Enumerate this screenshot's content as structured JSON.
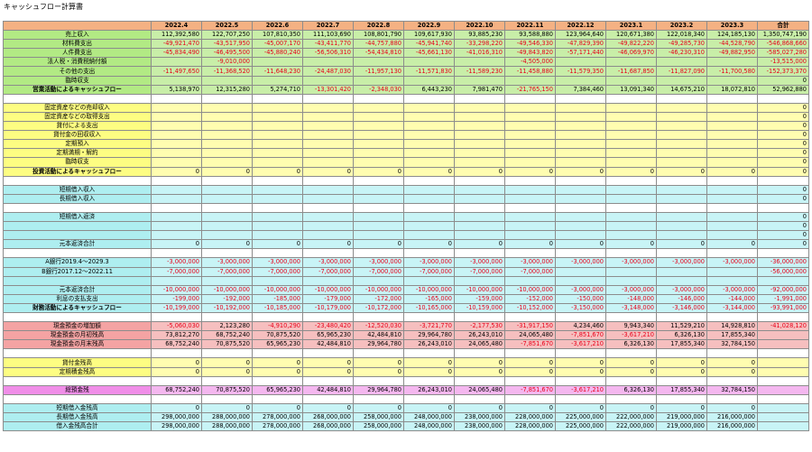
{
  "title": "キャッシュフロー計算書",
  "header": [
    "",
    "2022.4",
    "2022.5",
    "2022.6",
    "2022.7",
    "2022.8",
    "2022.9",
    "2022.10",
    "2022.11",
    "2022.12",
    "2023.1",
    "2023.2",
    "2023.3",
    "合計"
  ],
  "rows": [
    {
      "theme": "g",
      "label": "売上収入",
      "values": [
        "112,392,580",
        "122,707,250",
        "107,810,350",
        "111,103,690",
        "108,801,790",
        "109,617,930",
        "93,885,230",
        "93,588,880",
        "123,964,640",
        "120,671,380",
        "122,018,340",
        "124,185,130",
        "1,350,747,190"
      ]
    },
    {
      "theme": "g",
      "label": "材料費支出",
      "values": [
        "-49,921,470",
        "-43,517,950",
        "-45,007,170",
        "-43,411,770",
        "-44,757,880",
        "-45,941,740",
        "-33,298,220",
        "-49,546,330",
        "-47,829,390",
        "-49,822,220",
        "-49,285,730",
        "-44,528,790",
        "-546,868,660"
      ]
    },
    {
      "theme": "g",
      "label": "人件費支出",
      "values": [
        "-45,834,490",
        "-46,495,500",
        "-45,880,240",
        "-56,506,310",
        "-54,434,810",
        "-45,661,130",
        "-41,016,310",
        "-49,843,820",
        "-57,171,440",
        "-46,069,970",
        "-46,230,310",
        "-49,882,950",
        "-585,027,280"
      ]
    },
    {
      "theme": "g",
      "label": "法人税・消費税納付額",
      "values": [
        "",
        "-9,010,000",
        "",
        "",
        "",
        "",
        "",
        "-4,505,000",
        "",
        "",
        "",
        "",
        "-13,515,000"
      ]
    },
    {
      "theme": "g",
      "label": "その他の支出",
      "values": [
        "-11,497,650",
        "-11,368,520",
        "-11,648,230",
        "-24,487,030",
        "-11,957,130",
        "-11,571,830",
        "-11,589,230",
        "-11,458,880",
        "-11,579,350",
        "-11,687,850",
        "-11,827,090",
        "-11,700,580",
        "-152,373,370"
      ]
    },
    {
      "theme": "g",
      "label": "臨時収支",
      "values": [
        "",
        "",
        "",
        "",
        "",
        "",
        "",
        "",
        "",
        "",
        "",
        "",
        "0"
      ]
    },
    {
      "theme": "g",
      "label": "営業活動によるキャッシュフロー",
      "bold": true,
      "values": [
        "5,138,970",
        "12,315,280",
        "5,274,710",
        "-13,301,420",
        "-2,348,030",
        "6,443,230",
        "7,981,470",
        "-21,765,150",
        "7,384,460",
        "13,091,340",
        "14,675,210",
        "18,072,810",
        "52,962,880"
      ]
    },
    {
      "spacer": true,
      "theme": "y"
    },
    {
      "theme": "y",
      "label": "固定資産などの売却収入",
      "values": [
        "",
        "",
        "",
        "",
        "",
        "",
        "",
        "",
        "",
        "",
        "",
        "",
        "0"
      ]
    },
    {
      "theme": "y",
      "label": "固定資産などの取得支出",
      "values": [
        "",
        "",
        "",
        "",
        "",
        "",
        "",
        "",
        "",
        "",
        "",
        "",
        "0"
      ]
    },
    {
      "theme": "y",
      "label": "貸付による支出",
      "values": [
        "",
        "",
        "",
        "",
        "",
        "",
        "",
        "",
        "",
        "",
        "",
        "",
        "0"
      ]
    },
    {
      "theme": "y",
      "label": "貸付金の回収収入",
      "values": [
        "",
        "",
        "",
        "",
        "",
        "",
        "",
        "",
        "",
        "",
        "",
        "",
        "0"
      ]
    },
    {
      "theme": "y",
      "label": "定期預入",
      "values": [
        "",
        "",
        "",
        "",
        "",
        "",
        "",
        "",
        "",
        "",
        "",
        "",
        "0"
      ]
    },
    {
      "theme": "y",
      "label": "定期満期・解約",
      "values": [
        "",
        "",
        "",
        "",
        "",
        "",
        "",
        "",
        "",
        "",
        "",
        "",
        "0"
      ]
    },
    {
      "theme": "y",
      "label": "臨時収支",
      "values": [
        "",
        "",
        "",
        "",
        "",
        "",
        "",
        "",
        "",
        "",
        "",
        "",
        "0"
      ]
    },
    {
      "theme": "y",
      "label": "投資活動によるキャッシュフロー",
      "bold": true,
      "values": [
        "0",
        "0",
        "0",
        "0",
        "0",
        "0",
        "0",
        "0",
        "0",
        "0",
        "0",
        "0",
        "0"
      ]
    },
    {
      "spacer": true,
      "theme": "c"
    },
    {
      "theme": "c",
      "label": "短期借入収入",
      "values": [
        "",
        "",
        "",
        "",
        "",
        "",
        "",
        "",
        "",
        "",
        "",
        "",
        "0"
      ]
    },
    {
      "theme": "c",
      "label": "長期借入収入",
      "values": [
        "",
        "",
        "",
        "",
        "",
        "",
        "",
        "",
        "",
        "",
        "",
        "",
        "0"
      ]
    },
    {
      "spacer": true,
      "theme": "c"
    },
    {
      "theme": "c",
      "label": "短期借入返済",
      "values": [
        "",
        "",
        "",
        "",
        "",
        "",
        "",
        "",
        "",
        "",
        "",
        "",
        "0"
      ]
    },
    {
      "theme": "c",
      "label": "",
      "values": [
        "",
        "",
        "",
        "",
        "",
        "",
        "",
        "",
        "",
        "",
        "",
        "",
        "0"
      ]
    },
    {
      "theme": "c",
      "label": "",
      "values": [
        "",
        "",
        "",
        "",
        "",
        "",
        "",
        "",
        "",
        "",
        "",
        "",
        "0"
      ]
    },
    {
      "theme": "c",
      "label": "元本返済合計",
      "values": [
        "0",
        "0",
        "0",
        "0",
        "0",
        "0",
        "0",
        "0",
        "0",
        "0",
        "0",
        "0",
        "0"
      ]
    },
    {
      "spacer": true,
      "theme": "c"
    },
    {
      "theme": "c",
      "label": "A銀行2019.4～2029.3",
      "values": [
        "-3,000,000",
        "-3,000,000",
        "-3,000,000",
        "-3,000,000",
        "-3,000,000",
        "-3,000,000",
        "-3,000,000",
        "-3,000,000",
        "-3,000,000",
        "-3,000,000",
        "-3,000,000",
        "-3,000,000",
        "-36,000,000"
      ]
    },
    {
      "theme": "c",
      "label": "B銀行2017.12～2022.11",
      "values": [
        "-7,000,000",
        "-7,000,000",
        "-7,000,000",
        "-7,000,000",
        "-7,000,000",
        "-7,000,000",
        "-7,000,000",
        "-7,000,000",
        "",
        "",
        "",
        "",
        "-56,000,000"
      ]
    },
    {
      "theme": "c",
      "label": "",
      "values": [
        "",
        "",
        "",
        "",
        "",
        "",
        "",
        "",
        "",
        "",
        "",
        "",
        ""
      ]
    },
    {
      "theme": "c",
      "label": "元本返済合計",
      "values": [
        "-10,000,000",
        "-10,000,000",
        "-10,000,000",
        "-10,000,000",
        "-10,000,000",
        "-10,000,000",
        "-10,000,000",
        "-10,000,000",
        "-3,000,000",
        "-3,000,000",
        "-3,000,000",
        "-3,000,000",
        "-92,000,000"
      ]
    },
    {
      "theme": "c",
      "label": "利息の支払支出",
      "values": [
        "-199,000",
        "-192,000",
        "-185,000",
        "-179,000",
        "-172,000",
        "-165,000",
        "-159,000",
        "-152,000",
        "-150,000",
        "-148,000",
        "-146,000",
        "-144,000",
        "-1,991,000"
      ]
    },
    {
      "theme": "c",
      "label": "財務活動によるキャッシュフロー",
      "bold": true,
      "values": [
        "-10,199,000",
        "-10,192,000",
        "-10,185,000",
        "-10,179,000",
        "-10,172,000",
        "-10,165,000",
        "-10,159,000",
        "-10,152,000",
        "-3,150,000",
        "-3,148,000",
        "-3,146,000",
        "-3,144,000",
        "-93,991,000"
      ]
    },
    {
      "spacer": true,
      "theme": "r"
    },
    {
      "theme": "r",
      "label": "現金預金の増加額",
      "values": [
        "-5,060,030",
        "2,123,280",
        "-4,910,290",
        "-23,480,420",
        "-12,520,030",
        "-3,721,770",
        "-2,177,530",
        "-31,917,150",
        "4,234,460",
        "9,943,340",
        "11,529,210",
        "14,928,810",
        "-41,028,120"
      ]
    },
    {
      "theme": "r",
      "label": "現金預金の月初残高",
      "values": [
        "73,812,270",
        "68,752,240",
        "70,875,520",
        "65,965,230",
        "42,484,810",
        "29,964,780",
        "26,243,010",
        "24,065,480",
        "-7,851,670",
        "-3,617,210",
        "6,326,130",
        "17,855,340",
        ""
      ]
    },
    {
      "theme": "r",
      "label": "現金預金の月末残高",
      "values": [
        "68,752,240",
        "70,875,520",
        "65,965,230",
        "42,484,810",
        "29,964,780",
        "26,243,010",
        "24,065,480",
        "-7,851,670",
        "-3,617,210",
        "6,326,130",
        "17,855,340",
        "32,784,150",
        ""
      ]
    },
    {
      "spacer": true,
      "theme": "y"
    },
    {
      "theme": "y",
      "label": "貸付金残高",
      "diag": true,
      "values": [
        "0",
        "0",
        "0",
        "0",
        "0",
        "0",
        "0",
        "0",
        "0",
        "0",
        "0",
        "0",
        ""
      ]
    },
    {
      "theme": "y",
      "label": "定期積金残高",
      "diag": true,
      "values": [
        "0",
        "0",
        "0",
        "0",
        "0",
        "0",
        "0",
        "0",
        "0",
        "0",
        "0",
        "0",
        ""
      ]
    },
    {
      "spacer": true,
      "theme": "p"
    },
    {
      "theme": "p",
      "label": "総預金残",
      "diag": true,
      "values": [
        "68,752,240",
        "70,875,520",
        "65,965,230",
        "42,484,810",
        "29,964,780",
        "26,243,010",
        "24,065,480",
        "-7,851,670",
        "-3,617,210",
        "6,326,130",
        "17,855,340",
        "32,784,150",
        ""
      ]
    },
    {
      "spacer": true,
      "theme": "c"
    },
    {
      "theme": "c",
      "label": "短期借入金残高",
      "diag": true,
      "values": [
        "0",
        "0",
        "0",
        "0",
        "0",
        "0",
        "0",
        "0",
        "0",
        "0",
        "0",
        "0",
        ""
      ]
    },
    {
      "theme": "c",
      "label": "長期借入金残高",
      "diag": true,
      "values": [
        "298,000,000",
        "288,000,000",
        "278,000,000",
        "268,000,000",
        "258,000,000",
        "248,000,000",
        "238,000,000",
        "228,000,000",
        "225,000,000",
        "222,000,000",
        "219,000,000",
        "216,000,000",
        ""
      ]
    },
    {
      "theme": "c",
      "label": "借入金残高合計",
      "diag": true,
      "values": [
        "298,000,000",
        "288,000,000",
        "278,000,000",
        "268,000,000",
        "258,000,000",
        "248,000,000",
        "238,000,000",
        "228,000,000",
        "225,000,000",
        "222,000,000",
        "219,000,000",
        "216,000,000",
        ""
      ]
    }
  ]
}
